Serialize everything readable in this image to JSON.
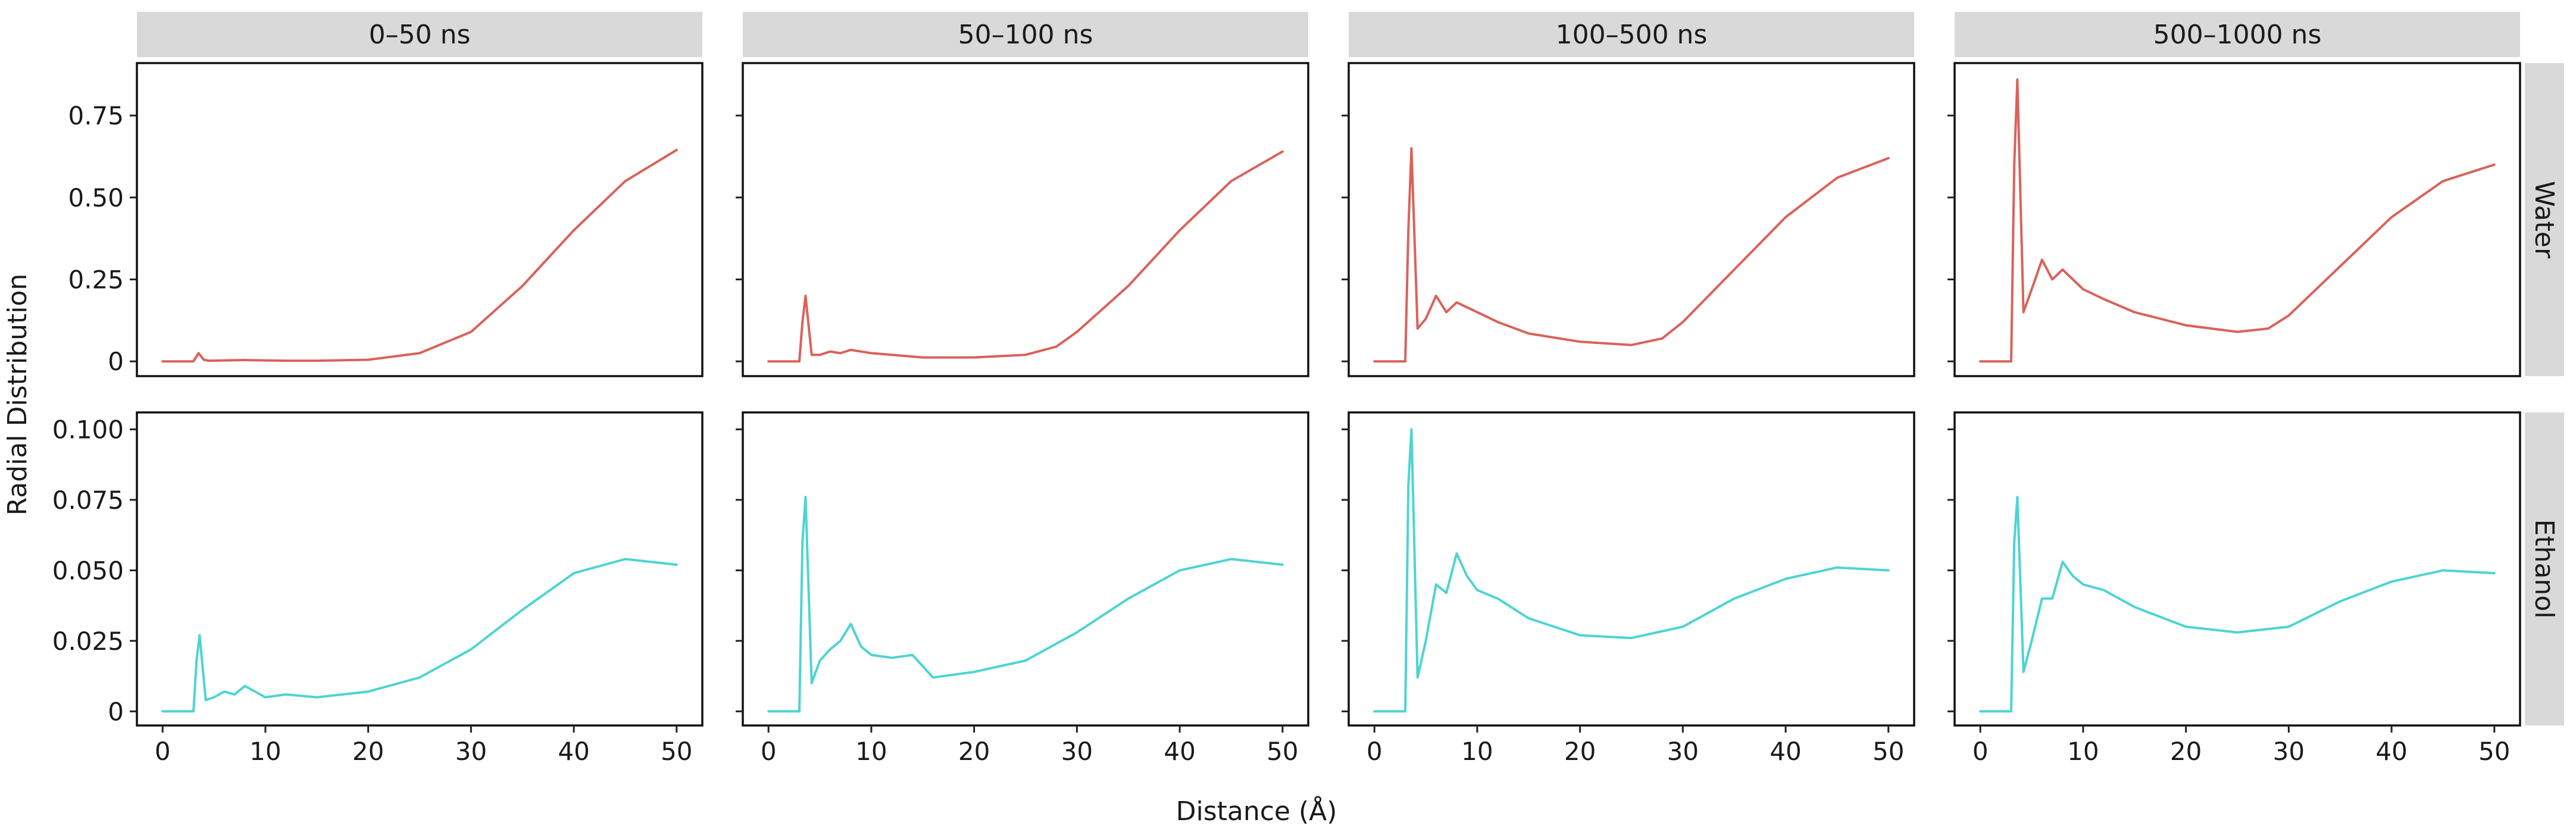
{
  "chart_data": {
    "type": "line",
    "layout": "facet_grid",
    "xlabel": "Distance (Å)",
    "ylabel": "Radial Distribution",
    "xlim": [
      -2.5,
      52.5
    ],
    "xticks": [
      0,
      10,
      20,
      30,
      40,
      50
    ],
    "columns": [
      "0–50 ns",
      "50–100 ns",
      "100–500 ns",
      "500–1000 ns"
    ],
    "rows": [
      {
        "name": "Water",
        "color": "#d9625a",
        "ylim": [
          -0.045,
          0.91
        ],
        "yticks": [
          0,
          0.25,
          0.5,
          0.75
        ],
        "ytick_labels": [
          "0",
          "0.25",
          "0.50",
          "0.75"
        ],
        "panels": [
          {
            "x": [
              0,
              3,
              3.5,
              4,
              4.5,
              6,
              8,
              10,
              12,
              15,
              20,
              25,
              30,
              35,
              40,
              45,
              50
            ],
            "y": [
              0,
              0,
              0.025,
              0.005,
              0.002,
              0.003,
              0.004,
              0.003,
              0.002,
              0.002,
              0.005,
              0.025,
              0.09,
              0.23,
              0.4,
              0.55,
              0.645
            ]
          },
          {
            "x": [
              0,
              3,
              3.3,
              3.6,
              4.2,
              5,
              6,
              7,
              8,
              9,
              10,
              12,
              15,
              20,
              25,
              28,
              30,
              35,
              40,
              45,
              50
            ],
            "y": [
              0,
              0,
              0.12,
              0.2,
              0.02,
              0.02,
              0.03,
              0.025,
              0.035,
              0.03,
              0.025,
              0.02,
              0.012,
              0.012,
              0.02,
              0.045,
              0.09,
              0.23,
              0.4,
              0.55,
              0.64
            ]
          },
          {
            "x": [
              0,
              3,
              3.3,
              3.6,
              4.2,
              5,
              6,
              7,
              8,
              9,
              10,
              12,
              15,
              20,
              25,
              28,
              30,
              35,
              40,
              45,
              50
            ],
            "y": [
              0,
              0,
              0.4,
              0.65,
              0.1,
              0.13,
              0.2,
              0.15,
              0.18,
              0.165,
              0.15,
              0.12,
              0.085,
              0.06,
              0.05,
              0.07,
              0.12,
              0.28,
              0.44,
              0.56,
              0.62
            ]
          },
          {
            "x": [
              0,
              3,
              3.3,
              3.6,
              4.2,
              5,
              6,
              7,
              8,
              9,
              10,
              12,
              15,
              20,
              25,
              28,
              30,
              35,
              40,
              45,
              50
            ],
            "y": [
              0,
              0,
              0.6,
              0.86,
              0.15,
              0.22,
              0.31,
              0.25,
              0.28,
              0.25,
              0.22,
              0.19,
              0.15,
              0.11,
              0.09,
              0.1,
              0.14,
              0.29,
              0.44,
              0.55,
              0.6
            ]
          }
        ]
      },
      {
        "name": "Ethanol",
        "color": "#4dd4d3",
        "ylim": [
          -0.005,
          0.106
        ],
        "yticks": [
          0,
          0.025,
          0.05,
          0.075,
          0.1
        ],
        "ytick_labels": [
          "0",
          "0.025",
          "0.050",
          "0.075",
          "0.100"
        ],
        "panels": [
          {
            "x": [
              0,
              3,
              3.3,
              3.6,
              4.2,
              5,
              6,
              7,
              8,
              9,
              10,
              12,
              15,
              20,
              25,
              30,
              35,
              40,
              45,
              50
            ],
            "y": [
              0,
              0,
              0.018,
              0.027,
              0.004,
              0.005,
              0.007,
              0.006,
              0.009,
              0.007,
              0.005,
              0.006,
              0.005,
              0.007,
              0.012,
              0.022,
              0.036,
              0.049,
              0.054,
              0.052
            ]
          },
          {
            "x": [
              0,
              3,
              3.3,
              3.6,
              4.2,
              5,
              6,
              7,
              8,
              9,
              10,
              12,
              14,
              16,
              18,
              20,
              25,
              30,
              35,
              40,
              45,
              50
            ],
            "y": [
              0,
              0,
              0.06,
              0.076,
              0.01,
              0.018,
              0.022,
              0.025,
              0.031,
              0.023,
              0.02,
              0.019,
              0.02,
              0.012,
              0.013,
              0.014,
              0.018,
              0.028,
              0.04,
              0.05,
              0.054,
              0.052
            ]
          },
          {
            "x": [
              0,
              3,
              3.3,
              3.6,
              4.2,
              5,
              6,
              7,
              8,
              9,
              10,
              12,
              15,
              20,
              25,
              30,
              35,
              40,
              45,
              50
            ],
            "y": [
              0,
              0,
              0.08,
              0.1,
              0.012,
              0.025,
              0.045,
              0.042,
              0.056,
              0.048,
              0.043,
              0.04,
              0.033,
              0.027,
              0.026,
              0.03,
              0.04,
              0.047,
              0.051,
              0.05
            ]
          },
          {
            "x": [
              0,
              3,
              3.3,
              3.6,
              4.2,
              5,
              6,
              7,
              8,
              9,
              10,
              12,
              15,
              20,
              25,
              30,
              35,
              40,
              45,
              50
            ],
            "y": [
              0,
              0,
              0.06,
              0.076,
              0.014,
              0.025,
              0.04,
              0.04,
              0.053,
              0.048,
              0.045,
              0.043,
              0.037,
              0.03,
              0.028,
              0.03,
              0.039,
              0.046,
              0.05,
              0.049
            ]
          }
        ]
      }
    ]
  }
}
